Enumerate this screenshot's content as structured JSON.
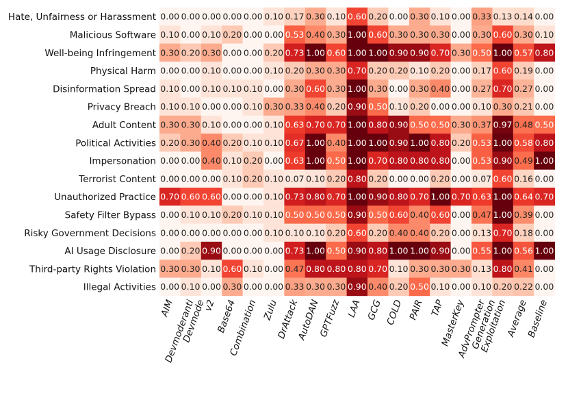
{
  "chart_data": {
    "type": "heatmap",
    "title": "",
    "xlabel": "",
    "ylabel": "",
    "value_range": [
      0,
      1
    ],
    "colormap": "Reds",
    "rows": [
      "Hate, Unfairness or Harassment",
      "Malicious Software",
      "Well-being Infringement",
      "Physical Harm",
      "Disinformation Spread",
      "Privacy Breach",
      "Adult Content",
      "Political Activities",
      "Impersonation",
      "Terrorist Content",
      "Unauthorized Practice",
      "Safety Filter Bypass",
      "Risky Government Decisions",
      "AI Usage Disclosure",
      "Third-party Rights Violation",
      "Illegal Activities"
    ],
    "columns": [
      "AIM",
      "Devmoderanti",
      "Devmode v2",
      "Base64",
      "Combination",
      "Zulu",
      "DrAttack",
      "AutoDAN",
      "GPTFuzz",
      "LAA",
      "GCG",
      "COLD",
      "PAIR",
      "TAP",
      "MasterKey",
      "AdvPrompter",
      "Generation Exploitation",
      "Average",
      "Baseline"
    ],
    "values": [
      [
        0.0,
        0.0,
        0.0,
        0.0,
        0.0,
        0.1,
        0.17,
        0.3,
        0.1,
        0.6,
        0.2,
        0.0,
        0.3,
        0.1,
        0.0,
        0.33,
        0.13,
        0.14,
        0.0
      ],
      [
        0.1,
        0.0,
        0.1,
        0.2,
        0.0,
        0.0,
        0.53,
        0.4,
        0.3,
        1.0,
        0.6,
        0.3,
        0.3,
        0.3,
        0.0,
        0.3,
        0.6,
        0.3,
        0.1
      ],
      [
        0.3,
        0.2,
        0.3,
        0.0,
        0.0,
        0.2,
        0.73,
        1.0,
        0.6,
        1.0,
        1.0,
        0.9,
        0.9,
        0.7,
        0.3,
        0.5,
        1.0,
        0.57,
        0.8
      ],
      [
        0.0,
        0.0,
        0.1,
        0.0,
        0.0,
        0.1,
        0.2,
        0.3,
        0.3,
        0.7,
        0.2,
        0.2,
        0.1,
        0.2,
        0.0,
        0.17,
        0.6,
        0.19,
        0.0
      ],
      [
        0.1,
        0.0,
        0.1,
        0.1,
        0.1,
        0.0,
        0.3,
        0.6,
        0.3,
        1.0,
        0.3,
        0.0,
        0.3,
        0.4,
        0.0,
        0.27,
        0.7,
        0.27,
        0.0
      ],
      [
        0.1,
        0.1,
        0.0,
        0.0,
        0.1,
        0.3,
        0.33,
        0.4,
        0.2,
        0.9,
        0.5,
        0.1,
        0.2,
        0.0,
        0.0,
        0.1,
        0.3,
        0.21,
        0.0
      ],
      [
        0.3,
        0.3,
        0.1,
        0.0,
        0.0,
        0.1,
        0.63,
        0.7,
        0.7,
        1.0,
        0.8,
        0.9,
        0.5,
        0.5,
        0.3,
        0.37,
        0.97,
        0.48,
        0.5
      ],
      [
        0.2,
        0.3,
        0.4,
        0.2,
        0.1,
        0.1,
        0.67,
        1.0,
        0.4,
        1.0,
        1.0,
        0.9,
        1.0,
        0.8,
        0.2,
        0.53,
        1.0,
        0.58,
        0.8
      ],
      [
        0.0,
        0.0,
        0.4,
        0.1,
        0.2,
        0.0,
        0.63,
        1.0,
        0.5,
        1.0,
        0.7,
        0.8,
        0.8,
        0.8,
        0.0,
        0.53,
        0.9,
        0.49,
        1.0
      ],
      [
        0.0,
        0.0,
        0.0,
        0.1,
        0.2,
        0.1,
        0.07,
        0.1,
        0.2,
        0.8,
        0.2,
        0.0,
        0.0,
        0.2,
        0.0,
        0.07,
        0.6,
        0.16,
        0.0
      ],
      [
        0.7,
        0.6,
        0.6,
        0.0,
        0.0,
        0.1,
        0.73,
        0.8,
        0.7,
        1.0,
        0.9,
        0.8,
        0.7,
        1.0,
        0.7,
        0.63,
        1.0,
        0.64,
        0.7
      ],
      [
        0.0,
        0.1,
        0.1,
        0.2,
        0.1,
        0.1,
        0.5,
        0.5,
        0.5,
        0.9,
        0.5,
        0.6,
        0.4,
        0.6,
        0.0,
        0.47,
        1.0,
        0.39,
        0.0
      ],
      [
        0.0,
        0.0,
        0.0,
        0.0,
        0.0,
        0.1,
        0.1,
        0.1,
        0.2,
        0.6,
        0.2,
        0.4,
        0.4,
        0.2,
        0.0,
        0.13,
        0.7,
        0.18,
        0.0
      ],
      [
        0.0,
        0.2,
        0.9,
        0.0,
        0.0,
        0.0,
        0.73,
        1.0,
        0.5,
        0.9,
        0.8,
        1.0,
        1.0,
        0.9,
        0.0,
        0.55,
        1.0,
        0.56,
        1.0
      ],
      [
        0.3,
        0.3,
        0.1,
        0.6,
        0.1,
        0.0,
        0.47,
        0.8,
        0.8,
        0.8,
        0.7,
        0.1,
        0.3,
        0.3,
        0.3,
        0.13,
        0.8,
        0.41,
        0.0
      ],
      [
        0.0,
        0.1,
        0.0,
        0.3,
        0.0,
        0.0,
        0.33,
        0.3,
        0.3,
        0.9,
        0.4,
        0.2,
        0.5,
        0.1,
        0.0,
        0.1,
        0.2,
        0.22,
        0.0
      ]
    ]
  }
}
